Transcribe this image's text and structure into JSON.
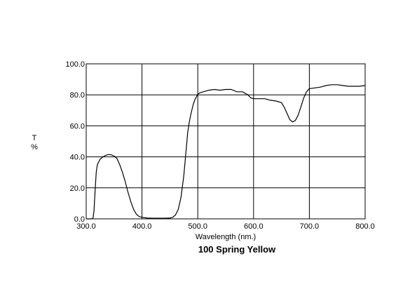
{
  "chart_data": {
    "type": "line",
    "title": "100 Spring Yellow",
    "xlabel": "Wavelength (nm.)",
    "ylabel_line1": "T",
    "ylabel_line2": "%",
    "xlim": [
      300,
      800
    ],
    "ylim": [
      0,
      100
    ],
    "grid": true,
    "x_ticks": [
      300,
      400,
      500,
      600,
      700,
      800
    ],
    "x_tick_labels": [
      "300.0",
      "400.0",
      "500.0",
      "600.0",
      "700.0",
      "800.0"
    ],
    "y_ticks": [
      0,
      20,
      40,
      60,
      80,
      100
    ],
    "y_tick_labels": [
      "0.0",
      "20.0",
      "40.0",
      "60.0",
      "80.0",
      "100.0"
    ],
    "series": [
      {
        "color": "#000000",
        "x": [
          300,
          308,
          312,
          314,
          316,
          318,
          320,
          325,
          330,
          335,
          340,
          345,
          350,
          355,
          360,
          365,
          370,
          375,
          380,
          385,
          390,
          395,
          400,
          410,
          420,
          430,
          440,
          450,
          455,
          460,
          465,
          470,
          475,
          478,
          480,
          482,
          485,
          488,
          490,
          492,
          495,
          498,
          500,
          505,
          510,
          520,
          530,
          540,
          550,
          560,
          570,
          580,
          590,
          595,
          600,
          610,
          620,
          630,
          640,
          650,
          655,
          660,
          665,
          670,
          675,
          680,
          685,
          690,
          695,
          700,
          710,
          720,
          730,
          740,
          750,
          760,
          770,
          780,
          790,
          800
        ],
        "y": [
          0,
          0,
          0.2,
          5,
          18,
          30,
          35,
          38.5,
          40,
          41,
          41.5,
          41.3,
          40.5,
          39,
          35,
          30,
          24,
          17,
          11,
          6,
          3,
          1.5,
          1,
          0.5,
          0.4,
          0.4,
          0.4,
          0.5,
          1,
          2.5,
          6,
          14,
          28,
          40,
          48,
          56,
          63,
          68,
          71,
          74,
          77,
          79,
          80.5,
          81.5,
          82,
          83,
          83.5,
          83,
          83.5,
          83.5,
          82,
          82,
          80,
          78,
          77.5,
          77.5,
          77.5,
          76.5,
          76,
          75,
          72,
          68,
          64,
          62.5,
          63.5,
          67,
          72.5,
          78,
          82,
          84,
          84.5,
          85,
          86,
          86.5,
          86.5,
          86,
          85.5,
          85.5,
          85.5,
          86
        ]
      }
    ]
  }
}
